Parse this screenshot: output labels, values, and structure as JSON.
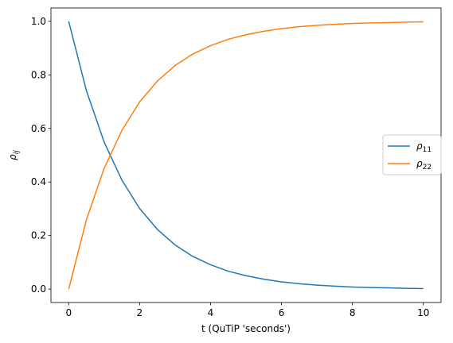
{
  "chart_data": {
    "type": "line",
    "title": "",
    "xlabel": "t (QuTiP 'seconds')",
    "ylabel": "ρij",
    "ylabel_main": "ρ",
    "ylabel_sub": "ij",
    "xlim": [
      -0.5,
      10.5
    ],
    "ylim": [
      -0.05,
      1.05
    ],
    "xticks": [
      0,
      2,
      4,
      6,
      8,
      10
    ],
    "xtick_labels": [
      "0",
      "2",
      "4",
      "6",
      "8",
      "10"
    ],
    "yticks": [
      0.0,
      0.2,
      0.4,
      0.6,
      0.8,
      1.0
    ],
    "ytick_labels": [
      "0.0",
      "0.2",
      "0.4",
      "0.6",
      "0.8",
      "1.0"
    ],
    "grid": false,
    "legend_position": "center-right",
    "x": [
      0,
      0.5,
      1,
      1.5,
      2,
      2.5,
      3,
      3.5,
      4,
      4.5,
      5,
      5.5,
      6,
      6.5,
      7,
      7.5,
      8,
      8.5,
      9,
      9.5,
      10
    ],
    "series": [
      {
        "name": "ρ11",
        "name_main": "ρ",
        "name_sub": "11",
        "color": "#1f77b4",
        "values": [
          1.0,
          0.741,
          0.549,
          0.407,
          0.301,
          0.223,
          0.165,
          0.122,
          0.091,
          0.067,
          0.05,
          0.037,
          0.027,
          0.02,
          0.015,
          0.011,
          0.008,
          0.006,
          0.005,
          0.003,
          0.002
        ]
      },
      {
        "name": "ρ22",
        "name_main": "ρ",
        "name_sub": "22",
        "color": "#ff7f0e",
        "values": [
          0.0,
          0.259,
          0.451,
          0.593,
          0.699,
          0.777,
          0.835,
          0.878,
          0.909,
          0.933,
          0.95,
          0.963,
          0.973,
          0.98,
          0.985,
          0.989,
          0.992,
          0.994,
          0.995,
          0.997,
          0.998
        ]
      }
    ]
  }
}
